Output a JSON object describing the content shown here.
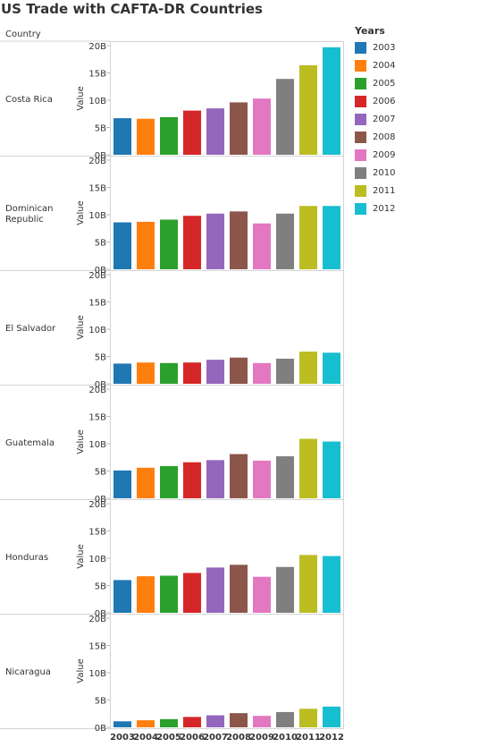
{
  "title": "US Trade with CAFTA-DR Countries",
  "row_header": "Country",
  "colors": {
    "2003": "#1f77b4",
    "2004": "#ff7f0e",
    "2005": "#2ca02c",
    "2006": "#d62728",
    "2007": "#9467bd",
    "2008": "#8c564b",
    "2009": "#e377c2",
    "2010": "#7f7f7f",
    "2011": "#bcbd22",
    "2012": "#17becf"
  },
  "legend": {
    "title": "Years",
    "items": [
      "2003",
      "2004",
      "2005",
      "2006",
      "2007",
      "2008",
      "2009",
      "2010",
      "2011",
      "2012"
    ]
  },
  "chart_data": {
    "type": "bar",
    "title": "US Trade with CAFTA-DR Countries",
    "ylabel": "Value",
    "ylim": [
      0,
      20
    ],
    "yticks": [
      "0B",
      "5B",
      "10B",
      "15B",
      "20B"
    ],
    "categories": [
      "2003",
      "2004",
      "2005",
      "2006",
      "2007",
      "2008",
      "2009",
      "2010",
      "2011",
      "2012"
    ],
    "panels": [
      {
        "name": "Costa Rica",
        "label_lines": [
          "Costa Rica"
        ],
        "values": [
          6.7,
          6.6,
          6.9,
          8.1,
          8.5,
          9.6,
          10.3,
          13.9,
          16.4,
          19.7
        ]
      },
      {
        "name": "Dominican Republic",
        "label_lines": [
          "Dominican",
          "Republic"
        ],
        "values": [
          8.6,
          8.7,
          9.1,
          9.8,
          10.2,
          10.6,
          8.4,
          10.2,
          11.6,
          11.6
        ]
      },
      {
        "name": "El Salvador",
        "label_lines": [
          "El Salvador"
        ],
        "values": [
          3.7,
          3.9,
          3.8,
          3.9,
          4.4,
          4.8,
          3.8,
          4.6,
          5.9,
          5.7
        ]
      },
      {
        "name": "Guatemala",
        "label_lines": [
          "Guatemala"
        ],
        "values": [
          5.1,
          5.6,
          5.9,
          6.6,
          7.0,
          8.1,
          6.9,
          7.7,
          10.9,
          10.4
        ]
      },
      {
        "name": "Honduras",
        "label_lines": [
          "Honduras"
        ],
        "values": [
          6.0,
          6.7,
          6.8,
          7.3,
          8.3,
          8.8,
          6.6,
          8.4,
          10.6,
          10.4
        ]
      },
      {
        "name": "Nicaragua",
        "label_lines": [
          "Nicaragua"
        ],
        "values": [
          1.1,
          1.3,
          1.5,
          1.9,
          2.2,
          2.6,
          2.1,
          2.8,
          3.4,
          3.8
        ]
      }
    ]
  }
}
